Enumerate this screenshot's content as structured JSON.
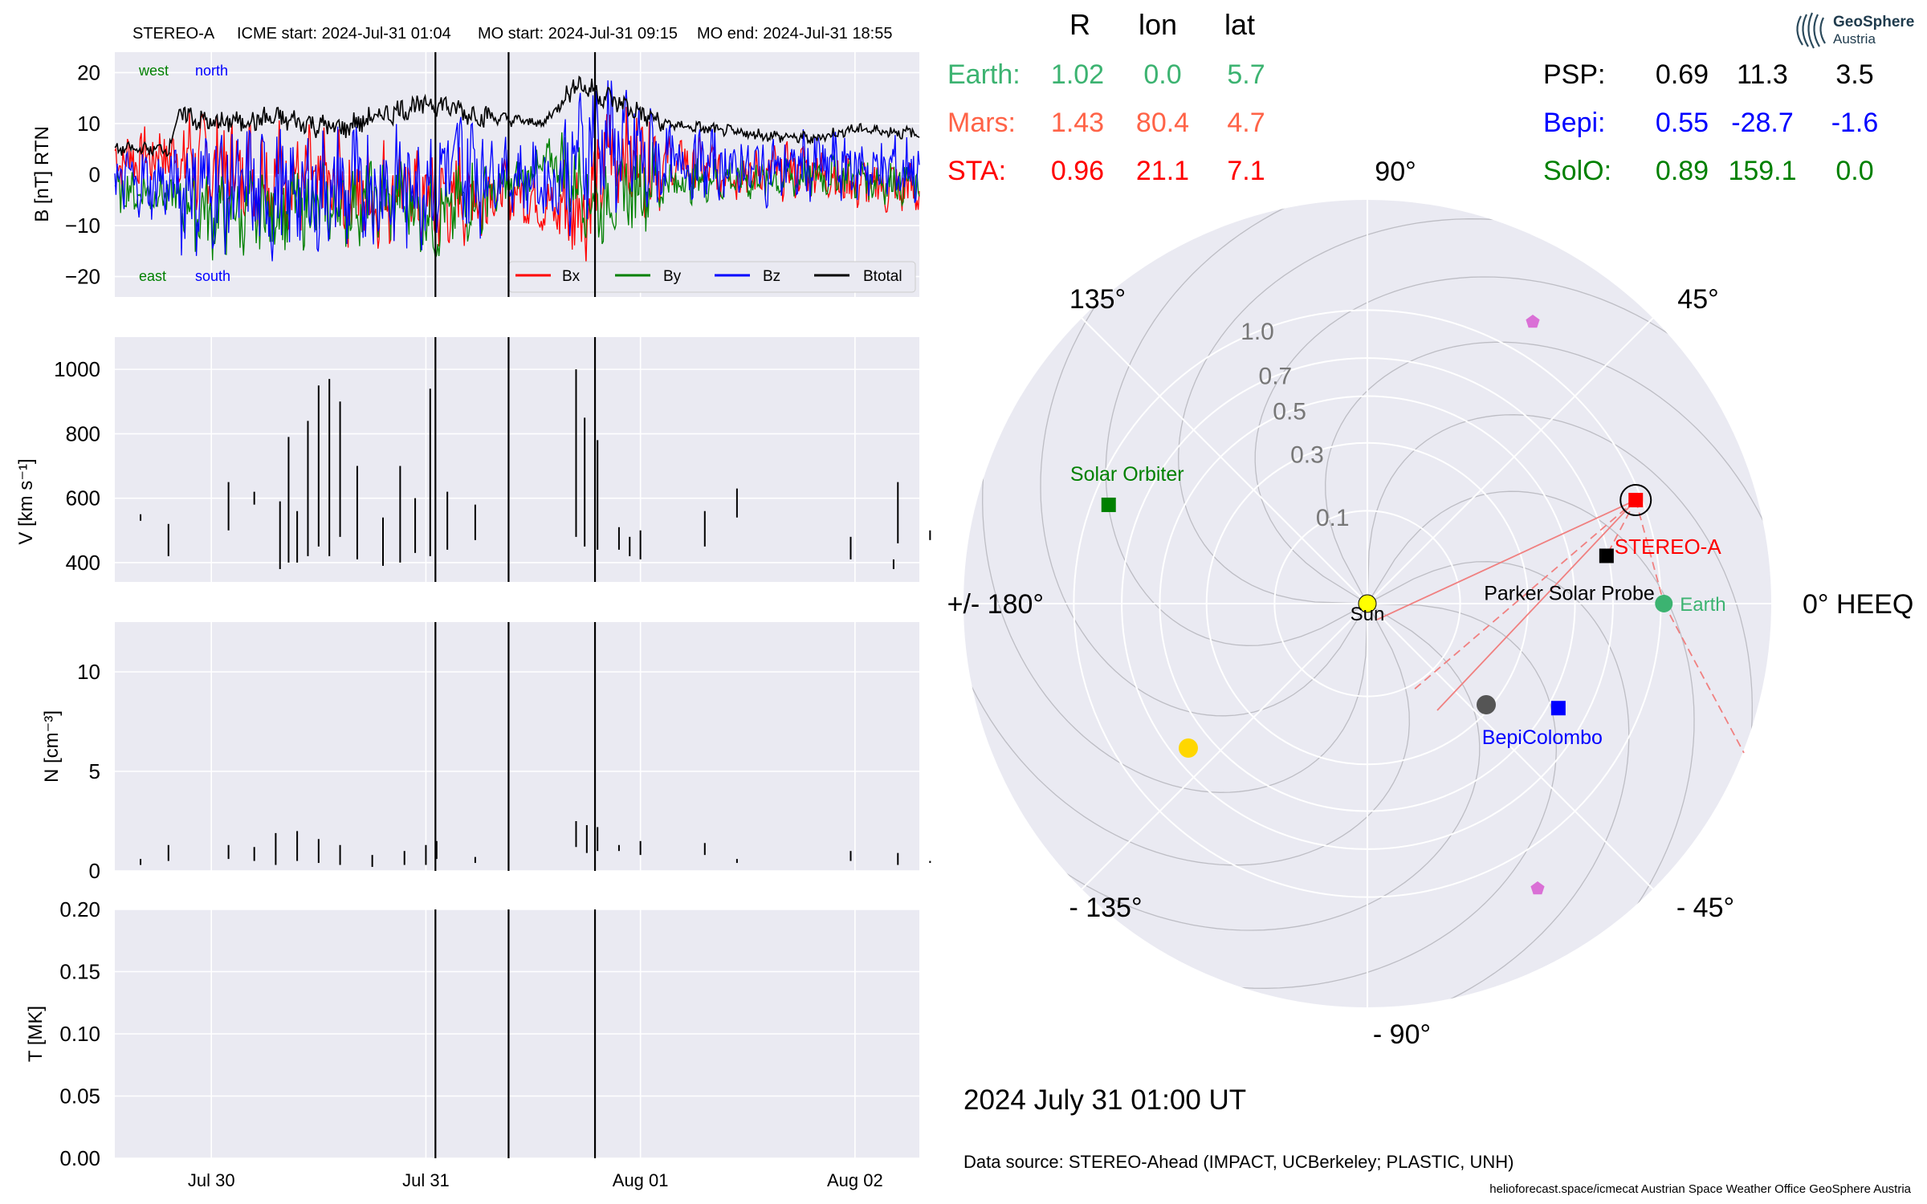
{
  "header": {
    "spacecraft": "STEREO-A",
    "icme_start": "ICME start: 2024-Jul-31 01:04",
    "mo_start": "MO start: 2024-Jul-31 09:15",
    "mo_end": "MO end: 2024-Jul-31 18:55"
  },
  "colors": {
    "bx": "#ff0000",
    "by": "#008000",
    "bz": "#0000ff",
    "btotal": "#000000",
    "earth": "#3cb371",
    "mars": "#ff6347",
    "sta": "#ff0000",
    "psp": "#000000",
    "bepi": "#0000ff",
    "solo": "#008000",
    "panel_bg": "#eaeaf2",
    "venus_mercury": "#ffd700",
    "pentagon": "#da70d6"
  },
  "chart_data": [
    {
      "type": "line",
      "ylabel": "B [nT] RTN",
      "ylim": [
        -24,
        24
      ],
      "yticks": [
        "20",
        "10",
        "0",
        "−10",
        "−20"
      ],
      "ytick_values": [
        20,
        10,
        0,
        -10,
        -20
      ],
      "annotations": {
        "west": "west",
        "north": "north",
        "east": "east",
        "south": "south"
      },
      "legend": [
        "Bx",
        "By",
        "Bz",
        "Btotal"
      ],
      "legend_placement": "lower right",
      "x_range_days": [
        29.55,
        33.3
      ],
      "event_lines": [
        "2024-07-31 01:04",
        "2024-07-31 09:15",
        "2024-07-31 18:55"
      ],
      "series": [
        {
          "name": "Bx",
          "anchors": [
            [
              29.55,
              3
            ],
            [
              29.8,
              4
            ],
            [
              30.0,
              2
            ],
            [
              30.3,
              0
            ],
            [
              30.5,
              -2
            ],
            [
              30.7,
              -4
            ],
            [
              30.9,
              -3
            ],
            [
              31.05,
              -6
            ],
            [
              31.2,
              -4
            ],
            [
              31.4,
              -3
            ],
            [
              31.6,
              -7
            ],
            [
              31.75,
              -6
            ],
            [
              31.85,
              4
            ],
            [
              32.0,
              3
            ],
            [
              32.2,
              2
            ],
            [
              32.5,
              0
            ],
            [
              32.8,
              1
            ],
            [
              33.0,
              -2
            ],
            [
              33.3,
              -3
            ]
          ]
        },
        {
          "name": "By",
          "anchors": [
            [
              29.55,
              -3
            ],
            [
              29.8,
              -4
            ],
            [
              30.0,
              -8
            ],
            [
              30.3,
              -7
            ],
            [
              30.6,
              -6
            ],
            [
              30.9,
              -5
            ],
            [
              31.05,
              -9
            ],
            [
              31.2,
              -5
            ],
            [
              31.4,
              -2
            ],
            [
              31.6,
              3
            ],
            [
              31.8,
              -6
            ],
            [
              32.0,
              -2
            ],
            [
              32.3,
              -1
            ],
            [
              32.6,
              -1
            ],
            [
              32.9,
              0
            ],
            [
              33.1,
              -1
            ],
            [
              33.3,
              -2
            ]
          ]
        },
        {
          "name": "Bz",
          "anchors": [
            [
              29.55,
              -1
            ],
            [
              29.8,
              -2
            ],
            [
              30.0,
              -2
            ],
            [
              30.3,
              -4
            ],
            [
              30.6,
              -3
            ],
            [
              30.9,
              -2
            ],
            [
              31.05,
              0
            ],
            [
              31.2,
              2
            ],
            [
              31.4,
              0
            ],
            [
              31.6,
              -2
            ],
            [
              31.8,
              8
            ],
            [
              32.0,
              3
            ],
            [
              32.3,
              2
            ],
            [
              32.6,
              1
            ],
            [
              32.9,
              2
            ],
            [
              33.1,
              1
            ],
            [
              33.3,
              1
            ]
          ]
        },
        {
          "name": "Btotal",
          "anchors": [
            [
              29.55,
              5
            ],
            [
              29.8,
              5
            ],
            [
              29.85,
              12
            ],
            [
              30.0,
              10
            ],
            [
              30.3,
              11
            ],
            [
              30.6,
              9
            ],
            [
              30.9,
              13
            ],
            [
              31.05,
              14
            ],
            [
              31.2,
              12
            ],
            [
              31.35,
              11
            ],
            [
              31.55,
              10
            ],
            [
              31.7,
              18
            ],
            [
              31.9,
              14
            ],
            [
              32.1,
              10
            ],
            [
              32.5,
              8
            ],
            [
              32.8,
              7
            ],
            [
              33.0,
              9
            ],
            [
              33.3,
              8
            ]
          ]
        }
      ]
    },
    {
      "type": "line",
      "ylabel": "V [km s⁻¹]",
      "ylim": [
        340,
        1100
      ],
      "yticks": [
        "1000",
        "800",
        "600",
        "400"
      ],
      "ytick_values": [
        1000,
        800,
        600,
        400
      ],
      "series": [
        {
          "name": "V",
          "segments": [
            [
              29.67,
              530,
              550
            ],
            [
              29.8,
              420,
              520
            ],
            [
              30.08,
              500,
              650
            ],
            [
              30.2,
              580,
              620
            ],
            [
              30.32,
              380,
              590
            ],
            [
              30.36,
              400,
              790
            ],
            [
              30.4,
              400,
              560
            ],
            [
              30.45,
              420,
              840
            ],
            [
              30.5,
              450,
              950
            ],
            [
              30.55,
              420,
              970
            ],
            [
              30.6,
              480,
              900
            ],
            [
              30.68,
              410,
              700
            ],
            [
              30.8,
              390,
              540
            ],
            [
              30.88,
              400,
              700
            ],
            [
              30.95,
              430,
              600
            ],
            [
              31.02,
              420,
              940
            ],
            [
              31.1,
              440,
              620
            ],
            [
              31.23,
              470,
              580
            ],
            [
              31.7,
              480,
              1000
            ],
            [
              31.74,
              450,
              850
            ],
            [
              31.8,
              440,
              780
            ],
            [
              31.9,
              440,
              510
            ],
            [
              31.95,
              420,
              480
            ],
            [
              32.0,
              410,
              500
            ],
            [
              32.3,
              450,
              560
            ],
            [
              32.45,
              540,
              630
            ],
            [
              32.98,
              410,
              480
            ],
            [
              33.18,
              380,
              410
            ],
            [
              33.2,
              460,
              650
            ],
            [
              33.35,
              470,
              500
            ]
          ]
        }
      ]
    },
    {
      "type": "line",
      "ylabel": "N [cm⁻³]",
      "ylim": [
        0,
        12.5
      ],
      "yticks": [
        "10",
        "5",
        "0"
      ],
      "ytick_values": [
        10,
        5,
        0
      ],
      "series": [
        {
          "name": "N",
          "segments": [
            [
              29.67,
              0.3,
              0.6
            ],
            [
              29.8,
              0.5,
              1.3
            ],
            [
              30.08,
              0.6,
              1.3
            ],
            [
              30.2,
              0.5,
              1.2
            ],
            [
              30.3,
              0.3,
              1.9
            ],
            [
              30.4,
              0.5,
              2.0
            ],
            [
              30.5,
              0.4,
              1.6
            ],
            [
              30.6,
              0.3,
              1.3
            ],
            [
              30.75,
              0.2,
              0.8
            ],
            [
              30.9,
              0.3,
              1.0
            ],
            [
              31.0,
              0.3,
              1.3
            ],
            [
              31.05,
              0.6,
              1.5
            ],
            [
              31.23,
              0.4,
              0.7
            ],
            [
              31.7,
              1.2,
              2.5
            ],
            [
              31.75,
              0.9,
              2.3
            ],
            [
              31.8,
              1.0,
              2.2
            ],
            [
              31.9,
              1.0,
              1.3
            ],
            [
              32.0,
              0.8,
              1.5
            ],
            [
              32.3,
              0.8,
              1.4
            ],
            [
              32.45,
              0.4,
              0.6
            ],
            [
              32.98,
              0.5,
              1.0
            ],
            [
              33.2,
              0.3,
              0.9
            ],
            [
              33.35,
              0.4,
              0.5
            ]
          ]
        }
      ]
    },
    {
      "type": "line",
      "ylabel": "T [MK]",
      "ylim": [
        0,
        0.2
      ],
      "yticks": [
        "0.20",
        "0.15",
        "0.10",
        "0.05",
        "0.00"
      ],
      "ytick_values": [
        0.2,
        0.15,
        0.1,
        0.05,
        0.0
      ],
      "xticks": [
        "Jul 30",
        "Jul 31",
        "Aug 01",
        "Aug 02"
      ],
      "xtick_values": [
        30,
        31,
        32,
        33
      ],
      "series": []
    },
    {
      "type": "scatter",
      "subtype": "polar",
      "radial_ticks": [
        "0.1",
        "0.3",
        "0.5",
        "0.7",
        "1.0"
      ],
      "radial_tick_values": [
        0.1,
        0.3,
        0.5,
        0.7,
        1.0
      ],
      "angle_labels": {
        "a0": "0° HEEQ",
        "a45": "45°",
        "a90": "90°",
        "a135": "135°",
        "a180": "+/- 180°",
        "am135": "- 135°",
        "am90": "- 90°",
        "am45": "- 45°"
      },
      "bodies": [
        {
          "label": "Sun",
          "r": 0.0,
          "lon": 0.0
        },
        {
          "label": "Earth",
          "r": 1.02,
          "lon": 0.0
        },
        {
          "label": "STEREO-A",
          "r": 0.96,
          "lon": 21.1
        },
        {
          "label": "Parker Solar Probe",
          "r": 0.69,
          "lon": 11.3
        },
        {
          "label": "BepiColombo",
          "r": 0.55,
          "lon": -28.7
        },
        {
          "label": "Solar Orbiter",
          "r": 0.89,
          "lon": 159.1
        }
      ]
    }
  ],
  "positions_table": {
    "headers": [
      "R",
      "lon",
      "lat"
    ],
    "rows_left": [
      {
        "name": "Earth:",
        "r": "1.02",
        "lon": "0.0",
        "lat": "5.7"
      },
      {
        "name": "Mars:",
        "r": "1.43",
        "lon": "80.4",
        "lat": "4.7"
      },
      {
        "name": "STA:",
        "r": "0.96",
        "lon": "21.1",
        "lat": "7.1"
      }
    ],
    "rows_right": [
      {
        "name": "PSP:",
        "r": "0.69",
        "lon": "11.3",
        "lat": "3.5"
      },
      {
        "name": "Bepi:",
        "r": "0.55",
        "lon": "-28.7",
        "lat": "-1.6"
      },
      {
        "name": "SolO:",
        "r": "0.89",
        "lon": "159.1",
        "lat": "0.0"
      }
    ]
  },
  "polar_labels": {
    "sun": "Sun",
    "earth": "Earth",
    "stereo_a": "STEREO-A",
    "psp": "Parker Solar Probe",
    "bepi": "BepiColombo",
    "solo": "Solar Orbiter"
  },
  "footer": {
    "date": "2024 July 31  01:00 UT",
    "source": "Data source: STEREO-Ahead (IMPACT, UCBerkeley; PLASTIC, UNH)",
    "credits": "helioforecast.space/icmecat   Austrian Space Weather Office   GeoSphere Austria"
  },
  "logo": {
    "name": "GeoSphere",
    "sub": "Austria"
  }
}
